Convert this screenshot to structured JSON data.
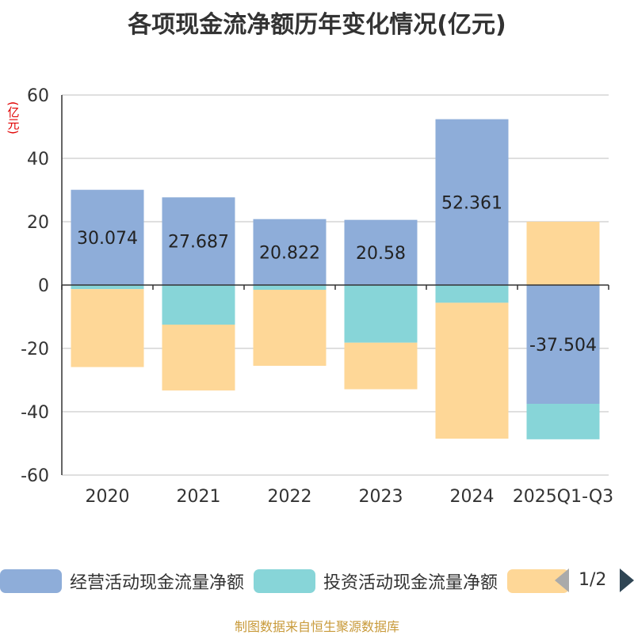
{
  "chart_data": {
    "type": "bar",
    "stacked": true,
    "title": "各项现金流净额历年变化情况(亿元)",
    "ylabel": "(亿元)",
    "categories": [
      "2020",
      "2021",
      "2022",
      "2023",
      "2024",
      "2025Q1-Q3"
    ],
    "ylim": [
      -60,
      60
    ],
    "yticks": [
      60,
      40,
      20,
      0,
      -20,
      -40,
      -60
    ],
    "grid": true,
    "series": [
      {
        "name": "经营活动现金流量净额",
        "color": "#8eadd9",
        "values": [
          30.074,
          27.687,
          20.822,
          20.58,
          52.361,
          -37.504
        ]
      },
      {
        "name": "投资活动现金流量净额",
        "color": "#87d5d8",
        "values": [
          -1.3,
          -12.5,
          -1.5,
          -18.2,
          -5.6,
          -11.2
        ]
      },
      {
        "name": "",
        "color": "#fed797",
        "values": [
          -24.6,
          -20.8,
          -24.0,
          -14.7,
          -42.9,
          20.0
        ]
      }
    ],
    "data_labels": [
      "30.074",
      "27.687",
      "20.822",
      "20.58",
      "52.361",
      "-37.504"
    ]
  },
  "legend": {
    "page": "1/2"
  },
  "source": "制图数据来自恒生聚源数据库"
}
